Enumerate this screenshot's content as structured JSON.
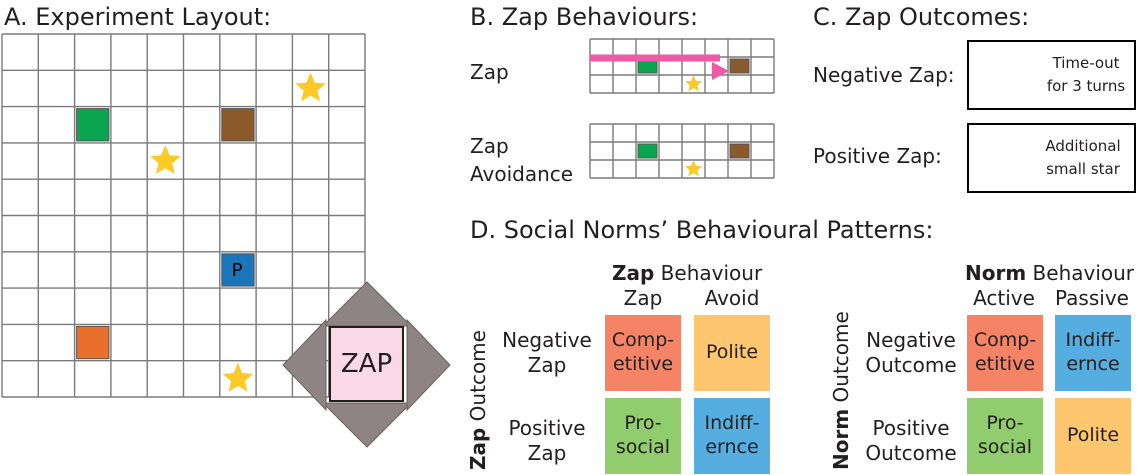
{
  "panel_a": {
    "title": "A. Experiment Layout:",
    "player_label": "P",
    "zap_button_label": "ZAP"
  },
  "panel_b": {
    "title": "B. Zap Behaviours:",
    "zap_label": "Zap",
    "avoid_label_line1": "Zap",
    "avoid_label_line2": "Avoidance"
  },
  "panel_c": {
    "title": "C. Zap Outcomes:",
    "negative_label": "Negative Zap:",
    "negative_text_line1": "Time-out",
    "negative_text_line2": "for 3 turns",
    "positive_label": "Positive Zap:",
    "positive_text_line1": "Additional",
    "positive_text_line2": "small star"
  },
  "panel_d": {
    "title": "D. Social Norms’ Behavioural Patterns:",
    "zap_table": {
      "header_bold": "Zap",
      "header_rest": " Behaviour",
      "col1": "Zap",
      "col2": "Avoid",
      "side_bold": "Zap",
      "side_rest": " Outcome",
      "row1_line1": "Negative",
      "row1_line2": "Zap",
      "row2_line1": "Positive",
      "row2_line2": "Zap",
      "c11_line1": "Comp-",
      "c11_line2": "etitive",
      "c12": "Polite",
      "c21_line1": "Pro-",
      "c21_line2": "social",
      "c22_line1": "Indiff-",
      "c22_line2": "ernce"
    },
    "norm_table": {
      "header_bold": "Norm",
      "header_rest": " Behaviour",
      "col1": "Active",
      "col2": "Passive",
      "side_bold": "Norm",
      "side_rest": " Outcome",
      "row1_line1": "Negative",
      "row1_line2": "Outcome",
      "row2_line1": "Positive",
      "row2_line2": "Outcome",
      "c11_line1": "Comp-",
      "c11_line2": "etitive",
      "c12_line1": "Indiff-",
      "c12_line2": "ernce",
      "c21_line1": "Pro-",
      "c21_line2": "social",
      "c22": "Polite"
    }
  },
  "colors": {
    "green": "#0aa54f",
    "brown": "#8b5a2b",
    "orange": "#e8702a",
    "blue": "#1b75bb",
    "star": "#fcc926",
    "pink_beam": "#ee5aa6",
    "competitive": "#f58365",
    "polite": "#fdc66f",
    "prosocial": "#91cc6e",
    "indifference": "#56aee0",
    "arrow_gray": "#8f8485",
    "zap_pink": "#f9d9e6"
  }
}
